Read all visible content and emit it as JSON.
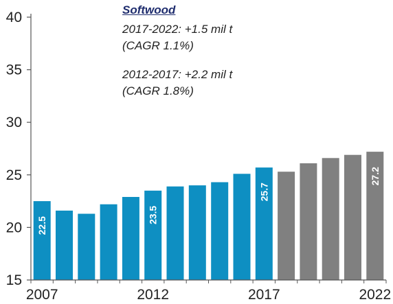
{
  "chart_data": {
    "type": "bar",
    "title": "",
    "xlabel": "",
    "ylabel": "",
    "ylim": [
      15,
      40
    ],
    "yticks": [
      15,
      20,
      25,
      30,
      35,
      40
    ],
    "categories": [
      "2007",
      "2008",
      "2009",
      "2010",
      "2011",
      "2012",
      "2013",
      "2014",
      "2015",
      "2016",
      "2017",
      "2018",
      "2019",
      "2020",
      "2021",
      "2022"
    ],
    "x_tick_labels": [
      "2007",
      "2012",
      "2017",
      "2022"
    ],
    "values": [
      22.5,
      21.6,
      21.3,
      22.2,
      22.9,
      23.5,
      23.9,
      24.0,
      24.3,
      25.1,
      25.7,
      25.3,
      26.1,
      26.6,
      26.9,
      27.2
    ],
    "data_labels": {
      "2007": "22.5",
      "2012": "23.5",
      "2017": "25.7",
      "2022": "27.2"
    },
    "series_colors": {
      "actual": "#0e8fc2",
      "forecast": "#808080"
    },
    "forecast_from": "2018",
    "grid": false,
    "annotation": {
      "title": "Softwood",
      "line1": "2017-2022: +1.5 mil t",
      "line2": "(CAGR 1.1%)",
      "line3": "2012-2017: +2.2 mil t",
      "line4": "(CAGR 1.8%)"
    }
  }
}
